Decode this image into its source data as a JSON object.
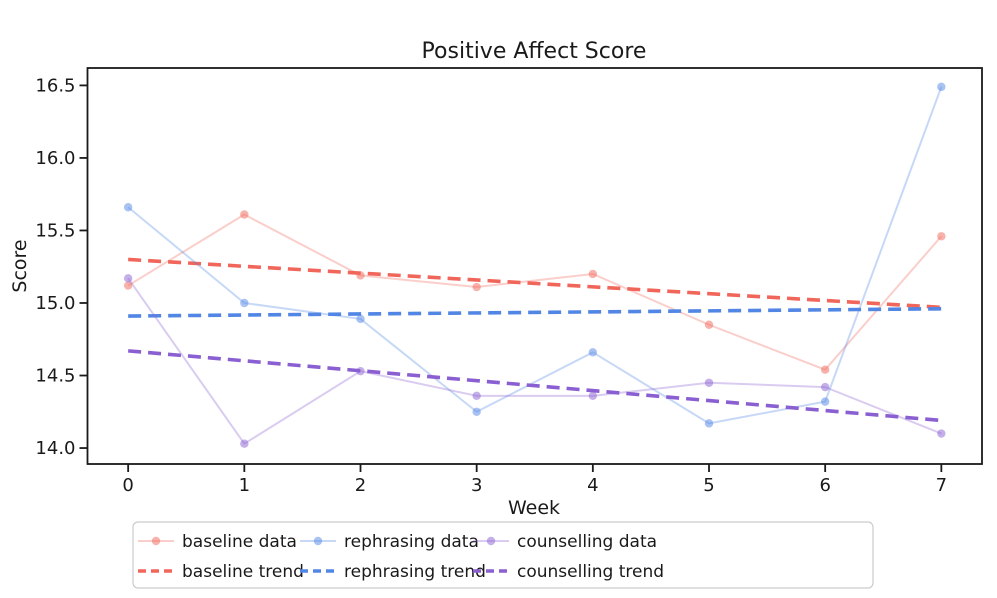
{
  "chart_data": {
    "type": "line",
    "title": "Positive Affect Score",
    "xlabel": "Week",
    "ylabel": "Score",
    "x": [
      0,
      1,
      2,
      3,
      4,
      5,
      6,
      7
    ],
    "xtick_labels": [
      "0",
      "1",
      "2",
      "3",
      "4",
      "5",
      "6",
      "7"
    ],
    "ytick_values": [
      14.0,
      14.5,
      15.0,
      15.5,
      16.0,
      16.5
    ],
    "ytick_labels": [
      "14.0",
      "14.5",
      "15.0",
      "15.5",
      "16.0",
      "16.5"
    ],
    "xlim": [
      -0.35,
      7.35
    ],
    "ylim": [
      13.89,
      16.62
    ],
    "grid": false,
    "legend_position": "lower center outside, 3 columns",
    "series": [
      {
        "name": "baseline data",
        "kind": "data",
        "color": "#f1665a",
        "line_color": "rgba(241,102,90,0.32)",
        "marker_color": "rgba(241,102,90,0.5)",
        "values": [
          15.12,
          15.61,
          15.19,
          15.11,
          15.2,
          14.85,
          14.54,
          15.46
        ]
      },
      {
        "name": "baseline trend",
        "kind": "trend",
        "color": "#f1665a",
        "trend_start": 15.3,
        "trend_end": 14.97
      },
      {
        "name": "rephrasing data",
        "kind": "data",
        "color": "#5286e5",
        "line_color": "rgba(82,134,229,0.32)",
        "marker_color": "rgba(82,134,229,0.5)",
        "values": [
          15.66,
          15.0,
          14.89,
          14.25,
          14.66,
          14.17,
          14.32,
          16.49
        ]
      },
      {
        "name": "rephrasing trend",
        "kind": "trend",
        "color": "#5286e5",
        "trend_start": 14.91,
        "trend_end": 14.96
      },
      {
        "name": "counselling data",
        "kind": "data",
        "color": "#8a5fd1",
        "line_color": "rgba(138,95,209,0.32)",
        "marker_color": "rgba(138,95,209,0.5)",
        "values": [
          15.17,
          14.03,
          14.53,
          14.36,
          14.36,
          14.45,
          14.42,
          14.1
        ]
      },
      {
        "name": "counselling trend",
        "kind": "trend",
        "color": "#8a5fd1",
        "trend_start": 14.67,
        "trend_end": 14.19
      }
    ],
    "legend": {
      "columns": [
        [
          "baseline data",
          "baseline trend"
        ],
        [
          "rephrasing data",
          "rephrasing trend"
        ],
        [
          "counselling data",
          "counselling trend"
        ]
      ]
    },
    "spine_color": "#1a1a1a",
    "legend_border_color": "#cccccc"
  }
}
